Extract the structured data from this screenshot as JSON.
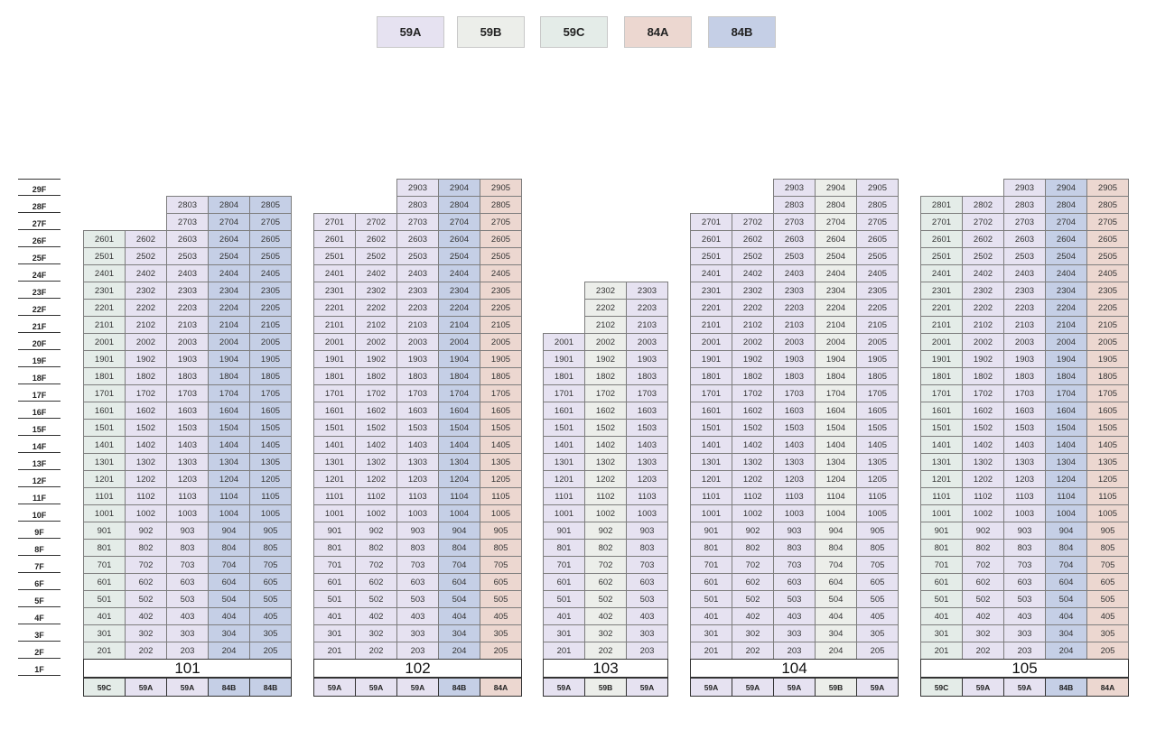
{
  "legend": [
    {
      "label": "59A",
      "color": "#e6e2f1"
    },
    {
      "label": "59B",
      "color": "#eceeea"
    },
    {
      "label": "59C",
      "color": "#e4ece8"
    },
    {
      "label": "84A",
      "color": "#ecd7d0"
    },
    {
      "label": "84B",
      "color": "#c5cfe6"
    }
  ],
  "floors": [
    "29F",
    "28F",
    "27F",
    "26F",
    "25F",
    "24F",
    "23F",
    "22F",
    "21F",
    "20F",
    "19F",
    "18F",
    "17F",
    "16F",
    "15F",
    "14F",
    "13F",
    "12F",
    "11F",
    "10F",
    "9F",
    "8F",
    "7F",
    "6F",
    "5F",
    "4F",
    "3F",
    "2F",
    "1F"
  ],
  "buildings": [
    {
      "name": "101",
      "types": [
        "59C",
        "59A",
        "59A",
        "84B",
        "84B"
      ],
      "tops": [
        26,
        26,
        28,
        28,
        28
      ]
    },
    {
      "name": "102",
      "types": [
        "59A",
        "59A",
        "59A",
        "84B",
        "84A"
      ],
      "tops": [
        27,
        27,
        29,
        29,
        29
      ]
    },
    {
      "name": "103",
      "types": [
        "59A",
        "59B",
        "59A"
      ],
      "tops": [
        20,
        23,
        23
      ]
    },
    {
      "name": "104",
      "types": [
        "59A",
        "59A",
        "59A",
        "59B",
        "59A"
      ],
      "tops": [
        27,
        27,
        29,
        29,
        29
      ]
    },
    {
      "name": "105",
      "types": [
        "59C",
        "59A",
        "59A",
        "84B",
        "84A"
      ],
      "tops": [
        28,
        28,
        29,
        29,
        29
      ]
    }
  ]
}
